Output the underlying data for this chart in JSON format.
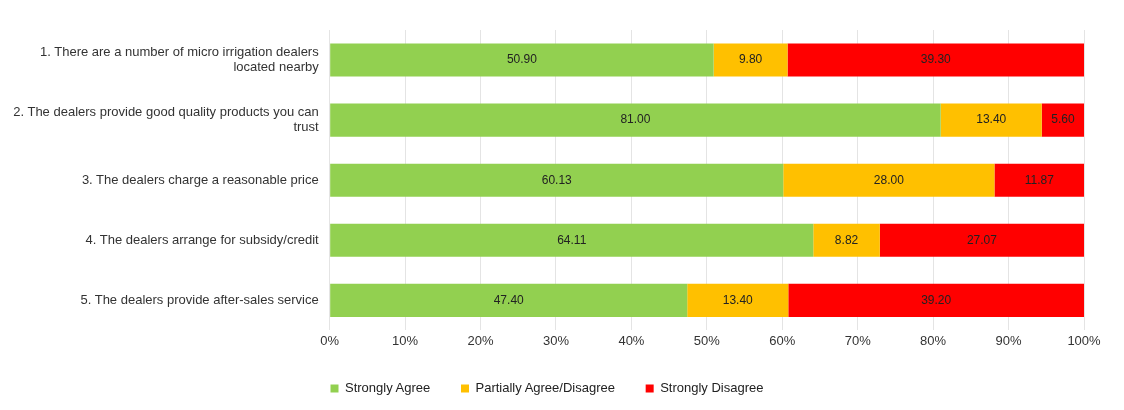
{
  "chart_data": {
    "type": "bar",
    "orientation": "horizontal",
    "stacked": true,
    "categories": [
      "1.   There are a number of micro irrigation dealers located nearby",
      "2.   The dealers provide good quality products you can trust",
      "3.   The dealers charge a reasonable price",
      "4.   The dealers arrange for subsidy/credit",
      "5.   The dealers provide after-sales service"
    ],
    "series": [
      {
        "name": "Strongly Agree",
        "color": "#92d050",
        "values": [
          50.9,
          81.0,
          60.13,
          64.11,
          47.4
        ],
        "value_labels": [
          "50.90",
          "81.00",
          "60.13",
          "64.11",
          "47.40"
        ]
      },
      {
        "name": "Partially Agree/Disagree",
        "color": "#ffc000",
        "values": [
          9.8,
          13.4,
          28.0,
          8.82,
          13.4
        ],
        "value_labels": [
          "9.80",
          "13.40",
          "28.00",
          "8.82",
          "13.40"
        ]
      },
      {
        "name": "Strongly Disagree",
        "color": "#ff0000",
        "values": [
          39.3,
          5.6,
          11.87,
          27.07,
          39.2
        ],
        "value_labels": [
          "39.30",
          "5.60",
          "11.87",
          "27.07",
          "39.20"
        ]
      }
    ],
    "xlim": [
      0,
      100
    ],
    "xticks": [
      {
        "value": 0,
        "label": "0%"
      },
      {
        "value": 10,
        "label": "10%"
      },
      {
        "value": 20,
        "label": "20%"
      },
      {
        "value": 30,
        "label": "30%"
      },
      {
        "value": 40,
        "label": "40%"
      },
      {
        "value": 50,
        "label": "50%"
      },
      {
        "value": 60,
        "label": "60%"
      },
      {
        "value": 70,
        "label": "70%"
      },
      {
        "value": 80,
        "label": "80%"
      },
      {
        "value": 90,
        "label": "90%"
      },
      {
        "value": 100,
        "label": "100%"
      }
    ],
    "grid": "x",
    "legend": "bottom"
  }
}
